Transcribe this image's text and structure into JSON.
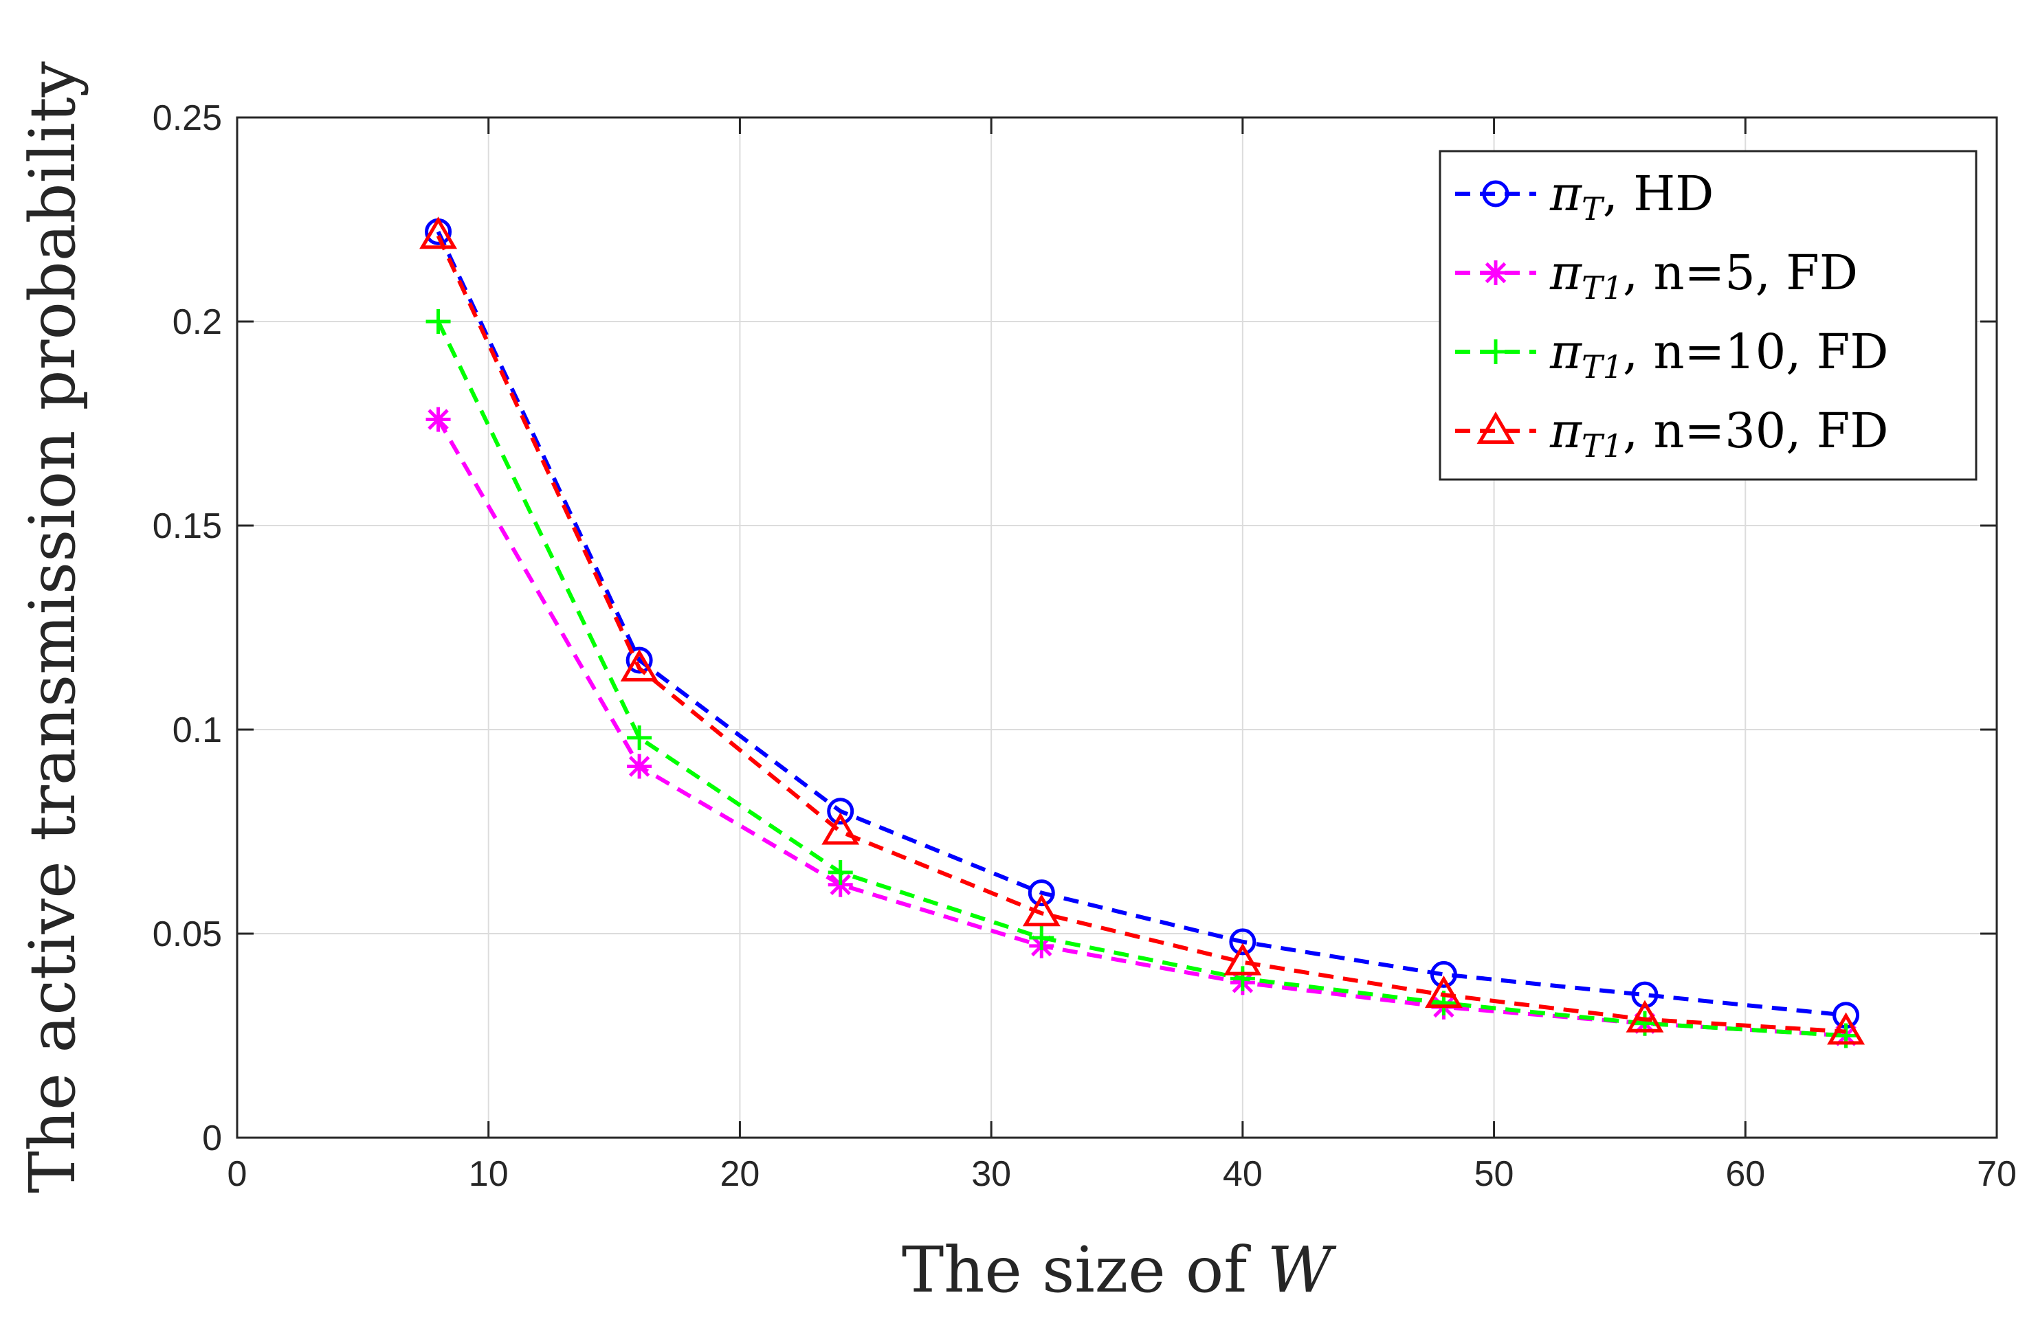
{
  "chart_data": {
    "type": "line",
    "title": "",
    "xlabel_prefix": "The size of",
    "xlabel_var": "W",
    "ylabel": "The active transmission probability",
    "xlim": [
      0,
      70
    ],
    "ylim": [
      0,
      0.25
    ],
    "xticks": [
      0,
      10,
      20,
      30,
      40,
      50,
      60,
      70
    ],
    "yticks": [
      0,
      0.05,
      0.1,
      0.15,
      0.2,
      0.25
    ],
    "xtick_labels": [
      "0",
      "10",
      "20",
      "30",
      "40",
      "50",
      "60",
      "70"
    ],
    "ytick_labels": [
      "0",
      "0.05",
      "0.1",
      "0.15",
      "0.2",
      "0.25"
    ],
    "grid": true,
    "legend_position": "top-right",
    "x": [
      8,
      16,
      24,
      32,
      40,
      48,
      56,
      64
    ],
    "series": [
      {
        "name": "πT, HD",
        "legend_symbol": "π",
        "legend_sub": "T",
        "legend_rest": ",  HD",
        "color": "#0000FF",
        "marker": "circle",
        "values": [
          0.222,
          0.117,
          0.08,
          0.06,
          0.048,
          0.04,
          0.035,
          0.03
        ]
      },
      {
        "name": "πT1, n=5, FD",
        "legend_symbol": "π",
        "legend_sub": "T1",
        "legend_rest": ", n=5,   FD",
        "color": "#FF00FF",
        "marker": "asterisk",
        "values": [
          0.176,
          0.091,
          0.062,
          0.047,
          0.038,
          0.032,
          0.028,
          0.025
        ]
      },
      {
        "name": "πT1, n=10, FD",
        "legend_symbol": "π",
        "legend_sub": "T1",
        "legend_rest": ", n=10, FD",
        "color": "#00FF00",
        "marker": "plus",
        "values": [
          0.2,
          0.098,
          0.065,
          0.049,
          0.039,
          0.033,
          0.028,
          0.025
        ]
      },
      {
        "name": "πT1, n=30, FD",
        "legend_symbol": "π",
        "legend_sub": "T1",
        "legend_rest": ", n=30, FD",
        "color": "#FF0000",
        "marker": "triangle",
        "values": [
          0.221,
          0.115,
          0.075,
          0.055,
          0.043,
          0.035,
          0.029,
          0.026
        ]
      }
    ]
  }
}
